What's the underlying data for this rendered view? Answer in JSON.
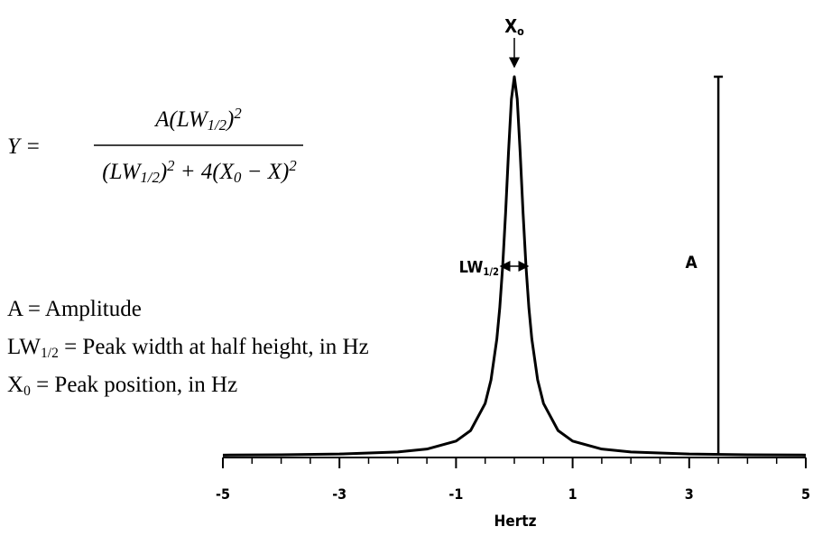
{
  "chart_data": {
    "type": "line",
    "x_label": "Hertz",
    "x": [
      -5,
      -4,
      -3,
      -2,
      -1.5,
      -1,
      -0.75,
      -0.5,
      -0.4,
      -0.3,
      -0.25,
      -0.2,
      -0.15,
      -0.1,
      -0.05,
      0,
      0.05,
      0.1,
      0.15,
      0.2,
      0.25,
      0.3,
      0.4,
      0.5,
      0.75,
      1,
      1.5,
      2,
      3,
      4,
      5
    ],
    "values": [
      0.0016,
      0.0025,
      0.0044,
      0.0099,
      0.0175,
      0.0385,
      0.0664,
      0.138,
      0.2,
      0.308,
      0.39,
      0.5,
      0.64,
      0.8,
      0.941,
      1,
      0.941,
      0.8,
      0.64,
      0.5,
      0.39,
      0.308,
      0.2,
      0.138,
      0.0664,
      0.0385,
      0.0175,
      0.0099,
      0.0044,
      0.0025,
      0.0016
    ],
    "color": "#000000",
    "xlim": [
      -5,
      5
    ],
    "ylim": [
      0,
      1
    ],
    "xticks": [
      -5,
      -3,
      -1,
      1,
      3,
      5
    ],
    "xminorticks": [
      -4.5,
      -4,
      -3.5,
      -2.5,
      -2,
      -1.5,
      -0.5,
      0,
      0.5,
      1.5,
      2,
      2.5,
      3.5,
      4,
      4.5
    ],
    "peak_label": [
      {
        "text": "X"
      },
      {
        "text": "o",
        "pos": "sub"
      }
    ],
    "peak_x": 0,
    "amplitude_marker": {
      "x": 3.5,
      "value": 1,
      "label": "A"
    },
    "width_marker": {
      "x": [
        -0.2,
        0.2
      ],
      "value": 0.5,
      "label": [
        {
          "text": "LW"
        },
        {
          "text": "1/2",
          "pos": "sub"
        }
      ]
    },
    "formula": {
      "lhs": "Y =",
      "numerator": [
        {
          "text": "A(LW"
        },
        {
          "text": "1/2",
          "pos": "sub"
        },
        {
          "text": ")"
        },
        {
          "text": "2",
          "pos": "sup"
        }
      ],
      "denominator": [
        {
          "text": "(LW"
        },
        {
          "text": "1/2",
          "pos": "sub"
        },
        {
          "text": ")"
        },
        {
          "text": "2",
          "pos": "sup"
        },
        {
          "text": " + 4(X"
        },
        {
          "text": "0",
          "pos": "sub"
        },
        {
          "text": " − X)"
        },
        {
          "text": "2",
          "pos": "sup"
        }
      ]
    },
    "definitions": [
      [
        {
          "text": "A = Amplitude"
        }
      ],
      [
        {
          "text": "LW"
        },
        {
          "text": "1/2",
          "pos": "sub"
        },
        {
          "text": " = Peak width at half height, in Hz"
        }
      ],
      [
        {
          "text": "X"
        },
        {
          "text": "0",
          "pos": "sub"
        },
        {
          "text": " = Peak position, in Hz"
        }
      ]
    ]
  }
}
